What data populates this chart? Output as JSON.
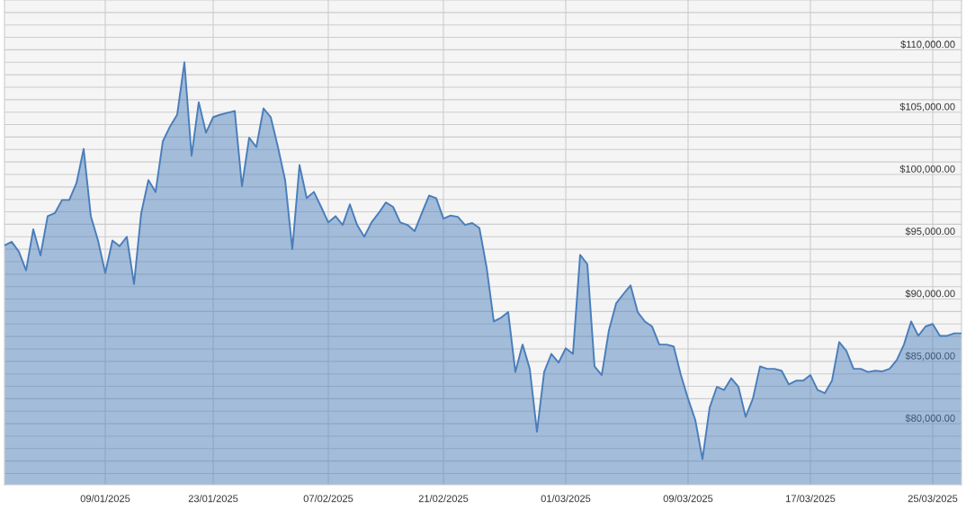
{
  "chart_data": {
    "type": "area",
    "categories": [
      null,
      null,
      null,
      null,
      null,
      null,
      null,
      null,
      null,
      null,
      null,
      null,
      null,
      null,
      "09/01/2025",
      null,
      null,
      null,
      null,
      null,
      null,
      null,
      null,
      null,
      null,
      null,
      null,
      null,
      null,
      "23/01/2025",
      null,
      null,
      null,
      null,
      null,
      null,
      null,
      null,
      null,
      null,
      null,
      null,
      null,
      null,
      null,
      "07/02/2025",
      null,
      null,
      null,
      null,
      null,
      null,
      null,
      null,
      null,
      null,
      null,
      null,
      null,
      null,
      null,
      "21/02/2025",
      null,
      null,
      null,
      null,
      null,
      null,
      null,
      null,
      null,
      null,
      null,
      null,
      null,
      null,
      null,
      null,
      "01/03/2025",
      null,
      null,
      null,
      null,
      null,
      null,
      null,
      null,
      null,
      null,
      null,
      null,
      null,
      null,
      null,
      null,
      "09/03/2025",
      null,
      null,
      null,
      null,
      null,
      null,
      null,
      null,
      null,
      null,
      null,
      null,
      null,
      null,
      null,
      null,
      "17/03/2025",
      null,
      null,
      null,
      null,
      null,
      null,
      null,
      null,
      null,
      null,
      null,
      null,
      null,
      null,
      null,
      null,
      "25/03/2025",
      null,
      null,
      null,
      null
    ],
    "series": [
      {
        "color": "#4a7ebb",
        "values": [
          94300,
          94600,
          93800,
          92300,
          95600,
          93500,
          96650,
          96900,
          97950,
          97950,
          99300,
          102050,
          96650,
          94700,
          92100,
          94700,
          94250,
          95000,
          91200,
          96900,
          99550,
          98600,
          102650,
          103850,
          104800,
          109000,
          101500,
          105800,
          103350,
          104600,
          104800,
          104950,
          105100,
          99050,
          102950,
          102200,
          105300,
          104600,
          102200,
          99550,
          94000,
          100750,
          98100,
          98600,
          97400,
          96150,
          96650,
          95950,
          97600,
          95950,
          95000,
          96150,
          96900,
          97750,
          97400,
          96150,
          95950,
          95450,
          96900,
          98300,
          98100,
          96450,
          96700,
          96600,
          95950,
          96100,
          95700,
          92550,
          88200,
          88500,
          88950,
          84150,
          86350,
          84400,
          79350,
          84150,
          85600,
          84900,
          86050,
          85600,
          93550,
          92800,
          84600,
          83900,
          87500,
          89650,
          90400,
          91100,
          88950,
          88200,
          87800,
          86350,
          86350,
          86200,
          83900,
          82000,
          80300,
          77150,
          81300,
          82950,
          82700,
          83650,
          82950,
          80550,
          82000,
          84600,
          84400,
          84400,
          84250,
          83150,
          83450,
          83450,
          83900,
          82700,
          82450,
          83450,
          86550,
          85850,
          84400,
          84400,
          84150,
          84250,
          84200,
          84400,
          85100,
          86350,
          88200,
          87050,
          87800,
          88000,
          87050,
          87050,
          87250,
          87250
        ]
      }
    ],
    "ylim": [
      75100,
      114000
    ],
    "yticks": [
      {
        "value": 76000,
        "label": null
      },
      {
        "value": 77000,
        "label": null
      },
      {
        "value": 78000,
        "label": null
      },
      {
        "value": 79000,
        "label": null
      },
      {
        "value": 80000,
        "label": "$80,000.00"
      },
      {
        "value": 81000,
        "label": null
      },
      {
        "value": 82000,
        "label": null
      },
      {
        "value": 83000,
        "label": null
      },
      {
        "value": 84000,
        "label": null
      },
      {
        "value": 85000,
        "label": "$85,000.00"
      },
      {
        "value": 86000,
        "label": null
      },
      {
        "value": 87000,
        "label": null
      },
      {
        "value": 88000,
        "label": null
      },
      {
        "value": 89000,
        "label": null
      },
      {
        "value": 90000,
        "label": "$90,000.00"
      },
      {
        "value": 91000,
        "label": null
      },
      {
        "value": 92000,
        "label": null
      },
      {
        "value": 93000,
        "label": null
      },
      {
        "value": 94000,
        "label": null
      },
      {
        "value": 95000,
        "label": "$95,000.00"
      },
      {
        "value": 96000,
        "label": null
      },
      {
        "value": 97000,
        "label": null
      },
      {
        "value": 98000,
        "label": null
      },
      {
        "value": 99000,
        "label": null
      },
      {
        "value": 100000,
        "label": "$100,000.00"
      },
      {
        "value": 101000,
        "label": null
      },
      {
        "value": 102000,
        "label": null
      },
      {
        "value": 103000,
        "label": null
      },
      {
        "value": 104000,
        "label": null
      },
      {
        "value": 105000,
        "label": "$105,000.00"
      },
      {
        "value": 106000,
        "label": null
      },
      {
        "value": 107000,
        "label": null
      },
      {
        "value": 108000,
        "label": null
      },
      {
        "value": 109000,
        "label": null
      },
      {
        "value": 110000,
        "label": "$110,000.00"
      },
      {
        "value": 111000,
        "label": null
      },
      {
        "value": 112000,
        "label": null
      },
      {
        "value": 113000,
        "label": null
      }
    ],
    "grid": true
  }
}
